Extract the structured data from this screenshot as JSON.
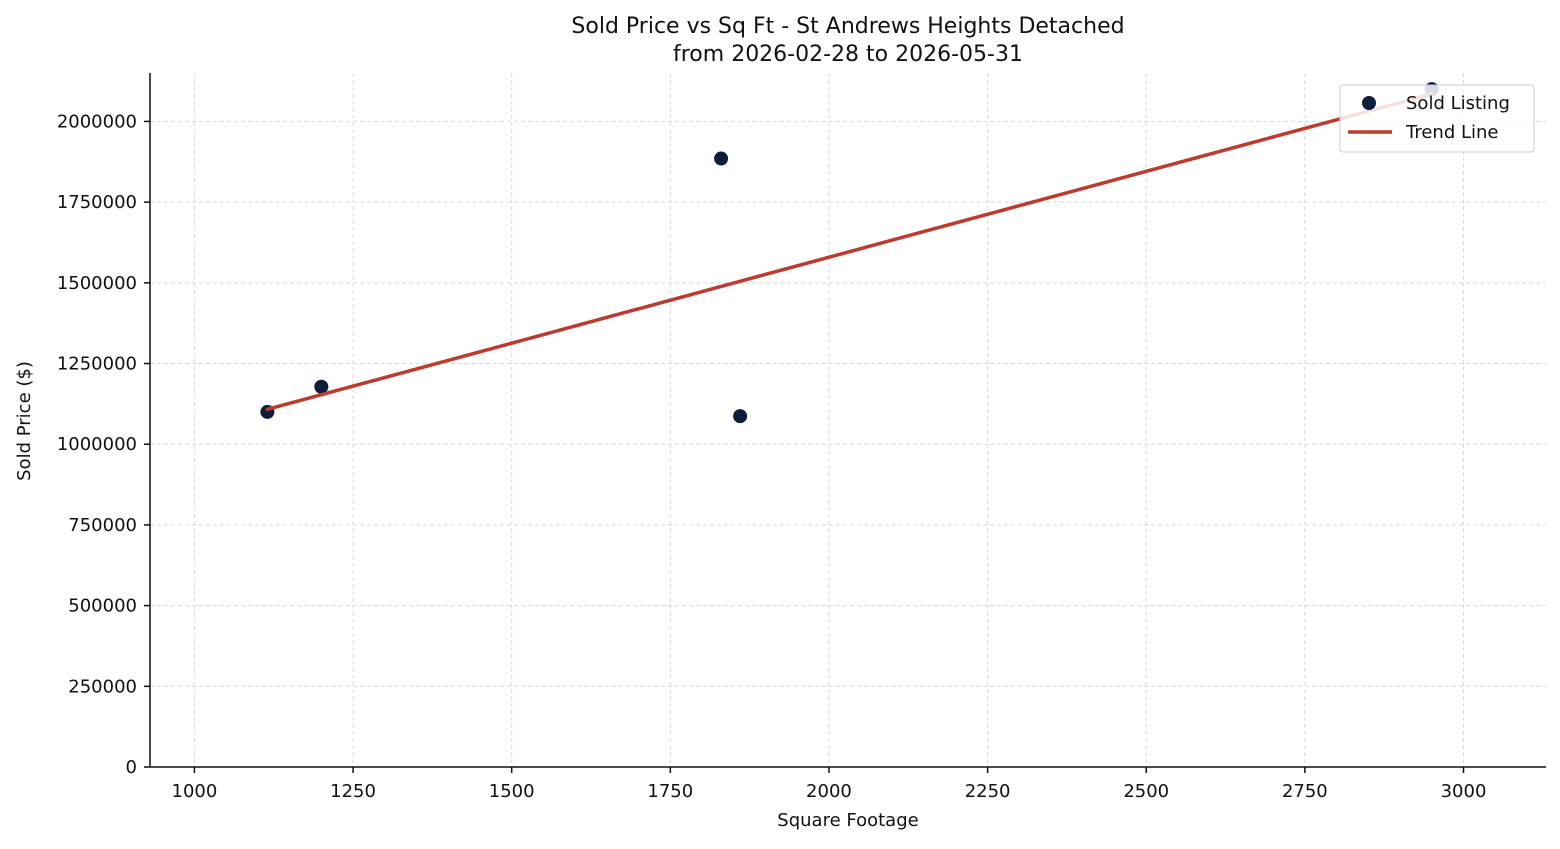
{
  "chart_data": {
    "type": "scatter",
    "title": "Sold Price vs Sq Ft - St Andrews Heights Detached",
    "subtitle": "from 2026-02-28 to 2026-05-31",
    "xlabel": "Square Footage",
    "ylabel": "Sold Price ($)",
    "xlim": [
      930,
      3130
    ],
    "ylim": [
      0,
      2150000
    ],
    "xticks": [
      1000,
      1250,
      1500,
      1750,
      2000,
      2250,
      2500,
      2750,
      3000
    ],
    "xtick_labels": [
      "1000",
      "1250",
      "1500",
      "1750",
      "2000",
      "2250",
      "2500",
      "2750",
      "3000"
    ],
    "yticks": [
      0,
      250000,
      500000,
      750000,
      1000000,
      1250000,
      1500000,
      1750000,
      2000000
    ],
    "ytick_labels": [
      "0",
      "250000",
      "500000",
      "750000",
      "1000000",
      "1250000",
      "1500000",
      "1750000",
      "2000000"
    ],
    "grid": true,
    "legend_position": "top-right",
    "series": [
      {
        "name": "Sold Listing",
        "kind": "scatter",
        "color": "#0b1f3a",
        "points": [
          {
            "x": 1115,
            "y": 1100000
          },
          {
            "x": 1200,
            "y": 1178000
          },
          {
            "x": 1830,
            "y": 1885000
          },
          {
            "x": 1860,
            "y": 1087000
          },
          {
            "x": 2950,
            "y": 2100000
          }
        ]
      },
      {
        "name": "Trend Line",
        "kind": "line",
        "color": "#c0392b",
        "points": [
          {
            "x": 1115,
            "y": 1108000
          },
          {
            "x": 2950,
            "y": 2085000
          }
        ]
      }
    ]
  }
}
